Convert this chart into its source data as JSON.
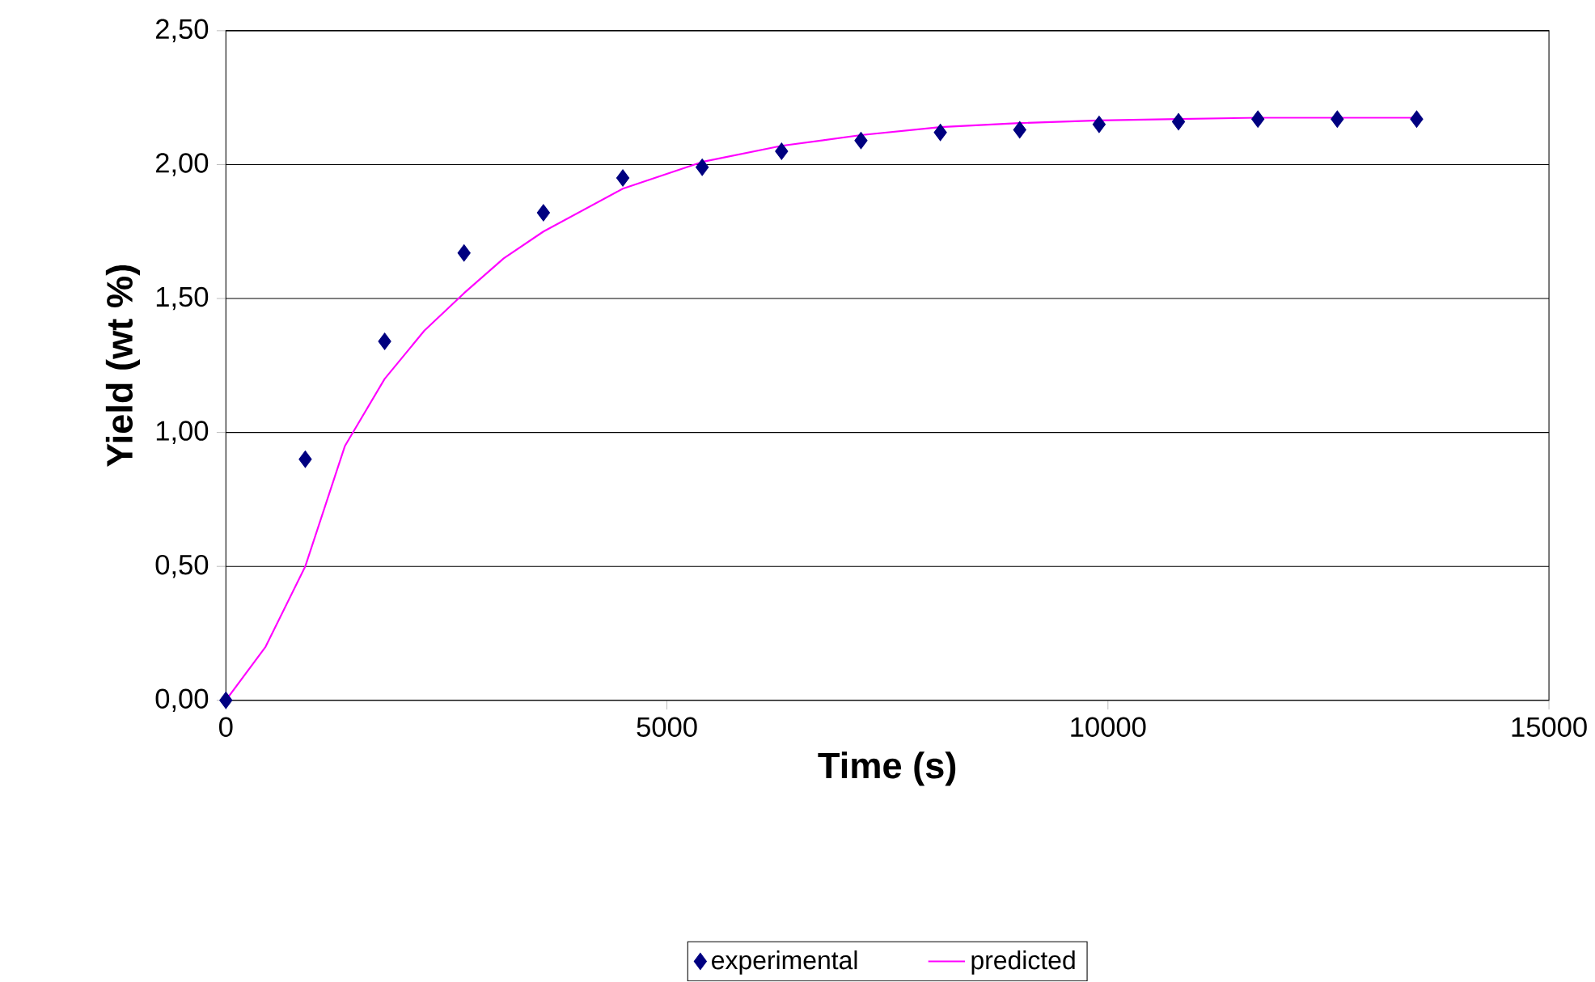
{
  "chart_data": {
    "type": "scatter",
    "xlabel": "Time (s)",
    "ylabel": "Yield (wt %)",
    "xlim": [
      0,
      15000
    ],
    "xticks": [
      0,
      5000,
      10000,
      15000
    ],
    "ylim": [
      0,
      2.5
    ],
    "yticks": [
      {
        "value": 0,
        "label": "0,00"
      },
      {
        "value": 0.5,
        "label": "0,50"
      },
      {
        "value": 1,
        "label": "1,00"
      },
      {
        "value": 1.5,
        "label": "1,50"
      },
      {
        "value": 2,
        "label": "2,00"
      },
      {
        "value": 2.5,
        "label": "2,50"
      }
    ],
    "grid": "y",
    "legend": "bottom",
    "series": [
      {
        "name": "experimental",
        "marker": "diamond",
        "color": "#000080",
        "x": [
          0,
          900,
          1800,
          2700,
          3600,
          4500,
          5400,
          6300,
          7200,
          8100,
          9000,
          9900,
          10800,
          11700,
          12600,
          13500
        ],
        "values": [
          0,
          0.9,
          1.34,
          1.67,
          1.82,
          1.95,
          1.99,
          2.05,
          2.09,
          2.12,
          2.13,
          2.15,
          2.16,
          2.17,
          2.17,
          2.17
        ]
      },
      {
        "name": "predicted",
        "type": "line",
        "marker": "none",
        "line_style": "solid",
        "color": "#ff00ff",
        "x": [
          0,
          450,
          900,
          1350,
          1800,
          2250,
          2700,
          3150,
          3600,
          4500,
          5400,
          6300,
          7200,
          8100,
          9000,
          9900,
          10800,
          11700,
          12600,
          13500
        ],
        "values": [
          0,
          0.2,
          0.5,
          0.95,
          1.2,
          1.38,
          1.52,
          1.65,
          1.75,
          1.91,
          2.01,
          2.07,
          2.11,
          2.14,
          2.155,
          2.165,
          2.17,
          2.175,
          2.175,
          2.175
        ]
      }
    ]
  }
}
